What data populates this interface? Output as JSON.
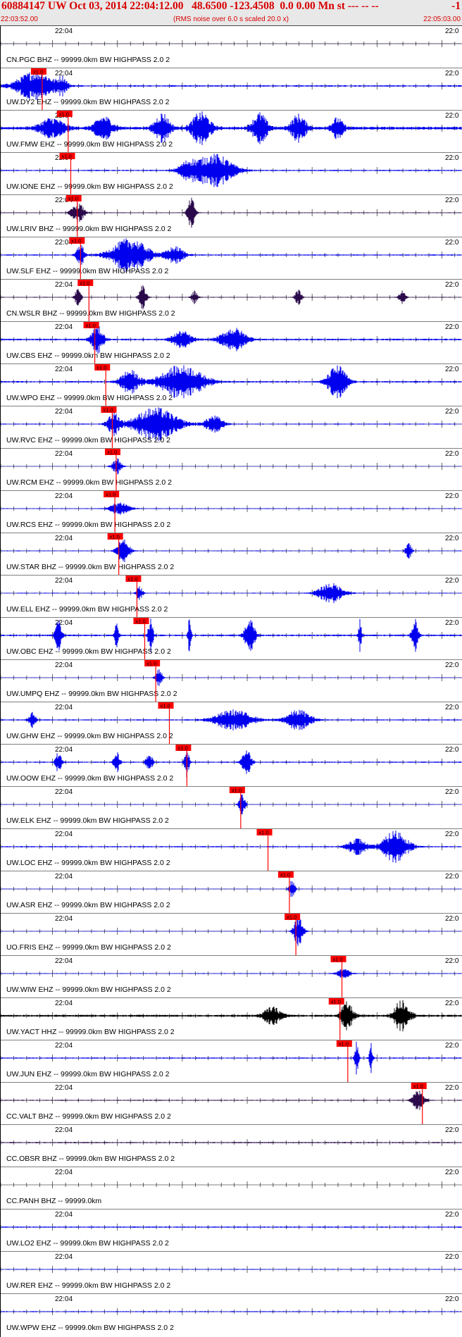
{
  "header": {
    "title": "60884147 UW Oct 03, 2014 22:04:12.00   48.6500 -123.4508  0.0 0.00 Mn st --- -- --",
    "title_end": "-1",
    "start_time": "22:03:52.00",
    "subtitle": "(RMS noise over 6.0 s scaled 20.0 x)",
    "end_time": "22:05:03.00"
  },
  "colors": {
    "title_red": "#d80000",
    "pick_red": "#ff0000",
    "blue": "#0000ee",
    "dark_purple": "#2a0a4a",
    "black": "#000000"
  },
  "chart_data": {
    "type": "line",
    "time_window": [
      "22:03:52.00",
      "22:05:03.00"
    ],
    "tick_label": "22:04",
    "tick_label_end": "22:0",
    "pick_label": "x1.0",
    "traces": [
      {
        "label": "CN.PGC BHZ -- 99999.0km BW  HIGHPASS  2.0  2",
        "color": "dark_purple",
        "pick_s": null,
        "noise": 0.05,
        "bursts": []
      },
      {
        "label": "UW.DY2 EHZ -- 99999.0km BW  HIGHPASS  2.0  2",
        "color": "blue",
        "pick_s": 6.4,
        "noise": 0.18,
        "bursts": [
          [
            5.5,
            6.0,
            0.9
          ],
          [
            9.6,
            1.5,
            0.5
          ]
        ]
      },
      {
        "label": "UW.FMW EHZ -- 99999.0km BW  HIGHPASS  2.0  2",
        "color": "blue",
        "pick_s": 10.4,
        "noise": 0.35,
        "bursts": [
          [
            8,
            4,
            0.6
          ],
          [
            16,
            3,
            0.7
          ],
          [
            25,
            2.5,
            0.9
          ],
          [
            31,
            3,
            1.0
          ],
          [
            40,
            2.5,
            0.9
          ],
          [
            46,
            2.5,
            0.8
          ],
          [
            52,
            2,
            0.6
          ]
        ]
      },
      {
        "label": "UW.IONE EHZ -- 99999.0km BW  HIGHPASS  2.0  2",
        "color": "blue",
        "pick_s": 10.8,
        "noise": 0.15,
        "bursts": [
          [
            33,
            6,
            1.0
          ],
          [
            29,
            3,
            0.5
          ]
        ]
      },
      {
        "label": "UW.LRIV BHZ -- 99999.0km BW  HIGHPASS  2.0  2",
        "color": "dark_purple",
        "pick_s": 11.8,
        "noise": 0.1,
        "bursts": [
          [
            12,
            2,
            0.6
          ],
          [
            29.5,
            1.2,
            0.9
          ]
        ]
      },
      {
        "label": "UW.SLF EHZ -- 99999.0km BW  HIGHPASS  2.0  2",
        "color": "blue",
        "pick_s": 12.3,
        "noise": 0.15,
        "bursts": [
          [
            20,
            6,
            1.0
          ],
          [
            12.4,
            1.2,
            0.7
          ],
          [
            27,
            3,
            0.5
          ]
        ]
      },
      {
        "label": "CN.WSLR BHZ -- 99999.0km BW  HIGHPASS  2.0  2",
        "color": "dark_purple",
        "pick_s": 13.6,
        "noise": 0.1,
        "bursts": [
          [
            12,
            1,
            0.5
          ],
          [
            22,
            1.2,
            0.7
          ],
          [
            30,
            1,
            0.4
          ],
          [
            46,
            1,
            0.5
          ],
          [
            62,
            1,
            0.4
          ]
        ]
      },
      {
        "label": "UW.CBS EHZ -- 99999.0km BW  HIGHPASS  2.0  2",
        "color": "blue",
        "pick_s": 14.5,
        "noise": 0.2,
        "bursts": [
          [
            15,
            2,
            0.8
          ],
          [
            36,
            4,
            0.7
          ],
          [
            28,
            3,
            0.5
          ]
        ]
      },
      {
        "label": "UW.WPO EHZ -- 99999.0km BW  HIGHPASS  2.0  2",
        "color": "blue",
        "pick_s": 16.2,
        "noise": 0.18,
        "bursts": [
          [
            28,
            7,
            1.0
          ],
          [
            52,
            3,
            1.0
          ],
          [
            20,
            3,
            0.7
          ]
        ]
      },
      {
        "label": "UW.RVC EHZ -- 99999.0km BW  HIGHPASS  2.0  2",
        "color": "blue",
        "pick_s": 17.2,
        "noise": 0.12,
        "bursts": [
          [
            24,
            7,
            1.0
          ],
          [
            17.5,
            2,
            0.7
          ],
          [
            33,
            3,
            0.5
          ]
        ]
      },
      {
        "label": "UW.RCM EHZ -- 99999.0km BW  HIGHPASS  2.0  2",
        "color": "blue",
        "pick_s": 17.8,
        "noise": 0.05,
        "bursts": [
          [
            18,
            1.5,
            0.5
          ]
        ]
      },
      {
        "label": "UW.RCS EHZ -- 99999.0km BW  HIGHPASS  2.0  2",
        "color": "blue",
        "pick_s": 17.6,
        "noise": 0.1,
        "bursts": [
          [
            18.5,
            3,
            0.4
          ]
        ]
      },
      {
        "label": "UW.STAR BHZ -- 99999.0km BW  HIGHPASS  2.0  2",
        "color": "blue",
        "pick_s": 18.2,
        "noise": 0.1,
        "bursts": [
          [
            19,
            2,
            0.7
          ],
          [
            63,
            1,
            0.5
          ]
        ]
      },
      {
        "label": "UW.ELL EHZ -- 99999.0km BW  HIGHPASS  2.0  2",
        "color": "blue",
        "pick_s": 21.0,
        "noise": 0.1,
        "bursts": [
          [
            21.5,
            1,
            0.4
          ],
          [
            51,
            4,
            0.6
          ]
        ]
      },
      {
        "label": "UW.OBC EHZ -- 99999.0km BW  HIGHPASS  2.0  2",
        "color": "blue",
        "pick_s": 22.2,
        "noise": 0.2,
        "bursts": [
          [
            9,
            1,
            1.0
          ],
          [
            18,
            0.6,
            0.8
          ],
          [
            23.2,
            0.8,
            1.0
          ],
          [
            29.2,
            0.5,
            1.0
          ],
          [
            38.5,
            1.6,
            1.0
          ],
          [
            55.5,
            0.5,
            1.0
          ],
          [
            64,
            1,
            1.0
          ]
        ]
      },
      {
        "label": "UW.UMPQ EHZ -- 99999.0km BW  HIGHPASS  2.0  2",
        "color": "blue",
        "pick_s": 23.9,
        "noise": 0.08,
        "bursts": [
          [
            24.5,
            1,
            0.6
          ]
        ]
      },
      {
        "label": "UW.GHW EHZ -- 99999.0km BW  HIGHPASS  2.0  2",
        "color": "blue",
        "pick_s": 26.0,
        "noise": 0.15,
        "bursts": [
          [
            36,
            6,
            0.6
          ],
          [
            46,
            4,
            0.6
          ],
          [
            5,
            1,
            0.5
          ]
        ]
      },
      {
        "label": "UW.OOW EHZ -- 99999.0km BW  HIGHPASS  2.0  2",
        "color": "blue",
        "pick_s": 28.7,
        "noise": 0.15,
        "bursts": [
          [
            9,
            1,
            0.6
          ],
          [
            18,
            1,
            0.6
          ],
          [
            23,
            1,
            0.6
          ],
          [
            28.8,
            0.7,
            1.0
          ],
          [
            38,
            1.5,
            0.8
          ]
        ]
      },
      {
        "label": "UW.ELK EHZ -- 99999.0km BW  HIGHPASS  2.0  2",
        "color": "blue",
        "pick_s": 37.0,
        "noise": 0.08,
        "bursts": [
          [
            37.3,
            1,
            0.6
          ]
        ]
      },
      {
        "label": "UW.LOC EHZ -- 99999.0km BW  HIGHPASS  2.0  2",
        "color": "blue",
        "pick_s": 41.2,
        "noise": 0.15,
        "bursts": [
          [
            61,
            4,
            1.0
          ],
          [
            55,
            3,
            0.5
          ]
        ]
      },
      {
        "label": "UW.ASR EHZ -- 99999.0km BW  HIGHPASS  2.0  2",
        "color": "blue",
        "pick_s": 44.5,
        "noise": 0.08,
        "bursts": [
          [
            45,
            1,
            0.5
          ]
        ]
      },
      {
        "label": "UO.FRIS EHZ -- 99999.0km BW  HIGHPASS  2.0  2",
        "color": "blue",
        "pick_s": 45.5,
        "noise": 0.08,
        "bursts": [
          [
            46,
            1.5,
            0.9
          ]
        ]
      },
      {
        "label": "UW.WIW EHZ -- 99999.0km BW  HIGHPASS  2.0  2",
        "color": "blue",
        "pick_s": 52.6,
        "noise": 0.1,
        "bursts": [
          [
            53,
            2,
            0.3
          ]
        ]
      },
      {
        "label": "UW.YACT HHZ -- 99999.0km BW  HIGHPASS  2.0  2",
        "color": "black",
        "pick_s": 52.3,
        "noise": 0.25,
        "bursts": [
          [
            53.5,
            2,
            0.8
          ],
          [
            62,
            2.5,
            1.0
          ],
          [
            42,
            3,
            0.5
          ]
        ]
      },
      {
        "label": "UW.JUN EHZ -- 99999.0km BW  HIGHPASS  2.0  2",
        "color": "blue",
        "pick_s": 53.5,
        "noise": 0.15,
        "bursts": [
          [
            55,
            0.6,
            1.0
          ],
          [
            57.2,
            0.5,
            1.0
          ]
        ]
      },
      {
        "label": "CC.VALT BHZ -- 99999.0km BW  HIGHPASS  2.0  2",
        "color": "dark_purple",
        "pick_s": 65.0,
        "noise": 0.12,
        "bursts": [
          [
            64.5,
            2,
            0.6
          ]
        ]
      },
      {
        "label": "CC.OBSR BHZ -- 99999.0km BW  HIGHPASS  2.0  2",
        "color": "dark_purple",
        "pick_s": null,
        "noise": 0.15,
        "bursts": []
      },
      {
        "label": "CC.PANH BHZ -- 99999.0km",
        "color": "blue",
        "pick_s": null,
        "noise": 0,
        "bursts": []
      },
      {
        "label": "UW.LO2 EHZ -- 99999.0km BW  HIGHPASS  2.0  2",
        "color": "blue",
        "pick_s": null,
        "noise": 0.15,
        "bursts": []
      },
      {
        "label": "UW.RER EHZ -- 99999.0km BW  HIGHPASS  2.0  2",
        "color": "blue",
        "pick_s": null,
        "noise": 0.1,
        "bursts": []
      },
      {
        "label": "UW.WPW EHZ -- 99999.0km BW  HIGHPASS  2.0  2",
        "color": "blue",
        "pick_s": null,
        "noise": 0.12,
        "bursts": []
      }
    ]
  }
}
